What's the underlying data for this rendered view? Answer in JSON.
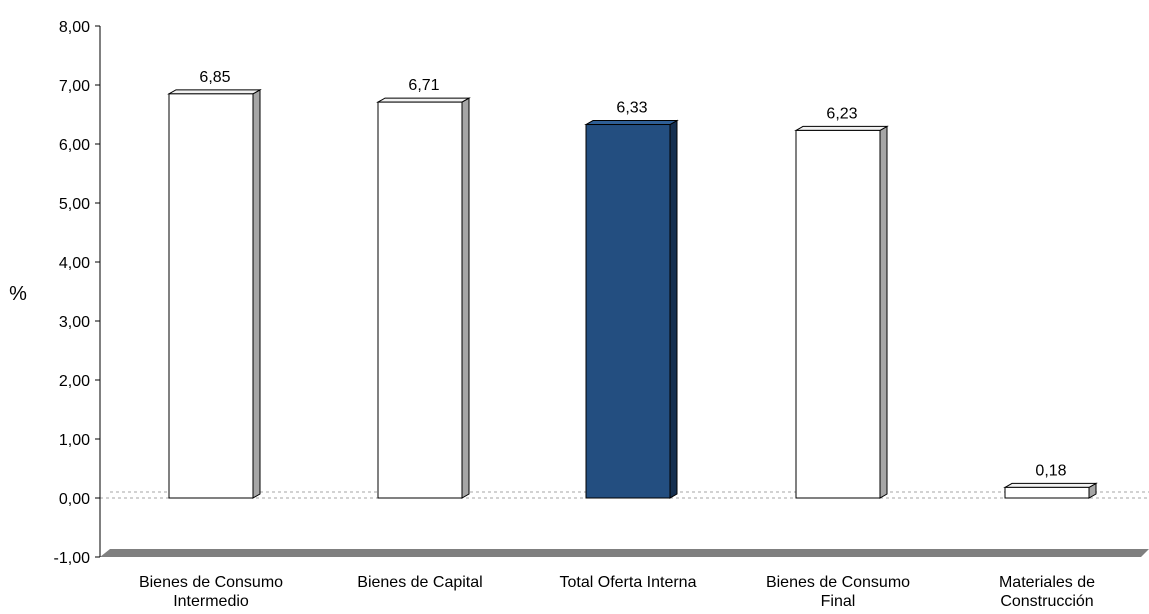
{
  "chart_data": {
    "type": "bar",
    "title": "",
    "ylabel": "%",
    "xlabel": "",
    "ylim": [
      -1,
      8
    ],
    "yticks": [
      "8,00",
      "7,00",
      "6,00",
      "5,00",
      "4,00",
      "3,00",
      "2,00",
      "1,00",
      "0,00",
      "-1,00"
    ],
    "ytick_values": [
      8,
      7,
      6,
      5,
      4,
      3,
      2,
      1,
      0,
      -1
    ],
    "categories": [
      [
        "Bienes de Consumo",
        "Intermedio"
      ],
      [
        "Bienes de Capital"
      ],
      [
        "Total Oferta Interna"
      ],
      [
        "Bienes de Consumo",
        "Final"
      ],
      [
        "Materiales de",
        "Construcción"
      ]
    ],
    "values": [
      6.85,
      6.71,
      6.33,
      6.23,
      0.18
    ],
    "value_labels": [
      "6,85",
      "6,71",
      "6,33",
      "6,23",
      "0,18"
    ],
    "highlight_index": 2,
    "colors": {
      "bar_fill": "#ffffff",
      "highlight_fill": "#234e80",
      "bar_stroke": "#000000",
      "side_shade": "#a6a6a6",
      "floor_shade": "#7f7f7f",
      "zero_line": "#a6a6a6"
    },
    "grid": false,
    "legend": "none"
  }
}
